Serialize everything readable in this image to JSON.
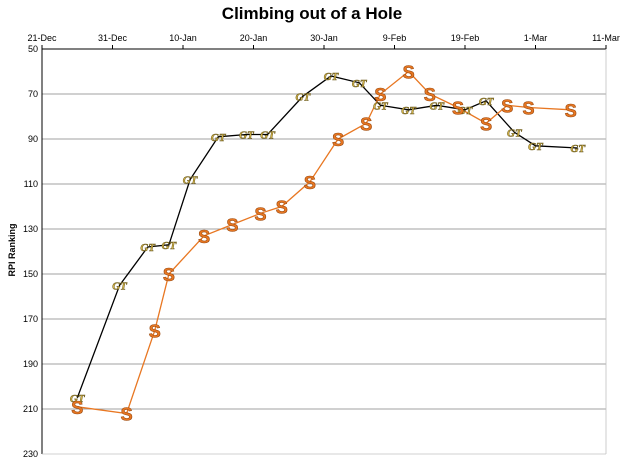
{
  "chart_data": {
    "type": "line",
    "title": "Climbing out of a Hole",
    "xlabel": "",
    "ylabel": "RPI Ranking",
    "x_ticks": [
      "21-Dec",
      "31-Dec",
      "10-Jan",
      "20-Jan",
      "30-Jan",
      "9-Feb",
      "19-Feb",
      "1-Mar",
      "11-Mar"
    ],
    "xlim": [
      "2010-12-21",
      "2011-03-11"
    ],
    "ylim": [
      50,
      230
    ],
    "y_ticks": [
      50,
      70,
      90,
      110,
      130,
      150,
      170,
      190,
      210,
      230
    ],
    "y_reversed": true,
    "grid": "horizontal",
    "series": [
      {
        "marker": "GT",
        "line_color": "#000000",
        "points": [
          {
            "x": "2010-12-26",
            "y": 205
          },
          {
            "x": "2011-01-01",
            "y": 155
          },
          {
            "x": "2011-01-05",
            "y": 138
          },
          {
            "x": "2011-01-08",
            "y": 137
          },
          {
            "x": "2011-01-11",
            "y": 108
          },
          {
            "x": "2011-01-15",
            "y": 89
          },
          {
            "x": "2011-01-19",
            "y": 88
          },
          {
            "x": "2011-01-22",
            "y": 88
          },
          {
            "x": "2011-01-27",
            "y": 71
          },
          {
            "x": "2011-01-31",
            "y": 62
          },
          {
            "x": "2011-02-04",
            "y": 65
          },
          {
            "x": "2011-02-07",
            "y": 75
          },
          {
            "x": "2011-02-11",
            "y": 77
          },
          {
            "x": "2011-02-15",
            "y": 75
          },
          {
            "x": "2011-02-19",
            "y": 77
          },
          {
            "x": "2011-02-22",
            "y": 73
          },
          {
            "x": "2011-02-26",
            "y": 87
          },
          {
            "x": "2011-03-01",
            "y": 93
          },
          {
            "x": "2011-03-07",
            "y": 94
          }
        ]
      },
      {
        "marker": "S",
        "line_color": "#e87722",
        "points": [
          {
            "x": "2010-12-26",
            "y": 209
          },
          {
            "x": "2011-01-02",
            "y": 212
          },
          {
            "x": "2011-01-06",
            "y": 175
          },
          {
            "x": "2011-01-08",
            "y": 150
          },
          {
            "x": "2011-01-13",
            "y": 133
          },
          {
            "x": "2011-01-17",
            "y": 128
          },
          {
            "x": "2011-01-21",
            "y": 123
          },
          {
            "x": "2011-01-24",
            "y": 120
          },
          {
            "x": "2011-01-28",
            "y": 109
          },
          {
            "x": "2011-02-01",
            "y": 90
          },
          {
            "x": "2011-02-05",
            "y": 83
          },
          {
            "x": "2011-02-07",
            "y": 70
          },
          {
            "x": "2011-02-11",
            "y": 60
          },
          {
            "x": "2011-02-14",
            "y": 70
          },
          {
            "x": "2011-02-18",
            "y": 76
          },
          {
            "x": "2011-02-22",
            "y": 83
          },
          {
            "x": "2011-02-25",
            "y": 75
          },
          {
            "x": "2011-02-28",
            "y": 76
          },
          {
            "x": "2011-03-06",
            "y": 77
          }
        ]
      }
    ]
  },
  "colors": {
    "s_marker": "#e87722",
    "gt_marker": "#d4b44a",
    "gridline": "#808080"
  }
}
